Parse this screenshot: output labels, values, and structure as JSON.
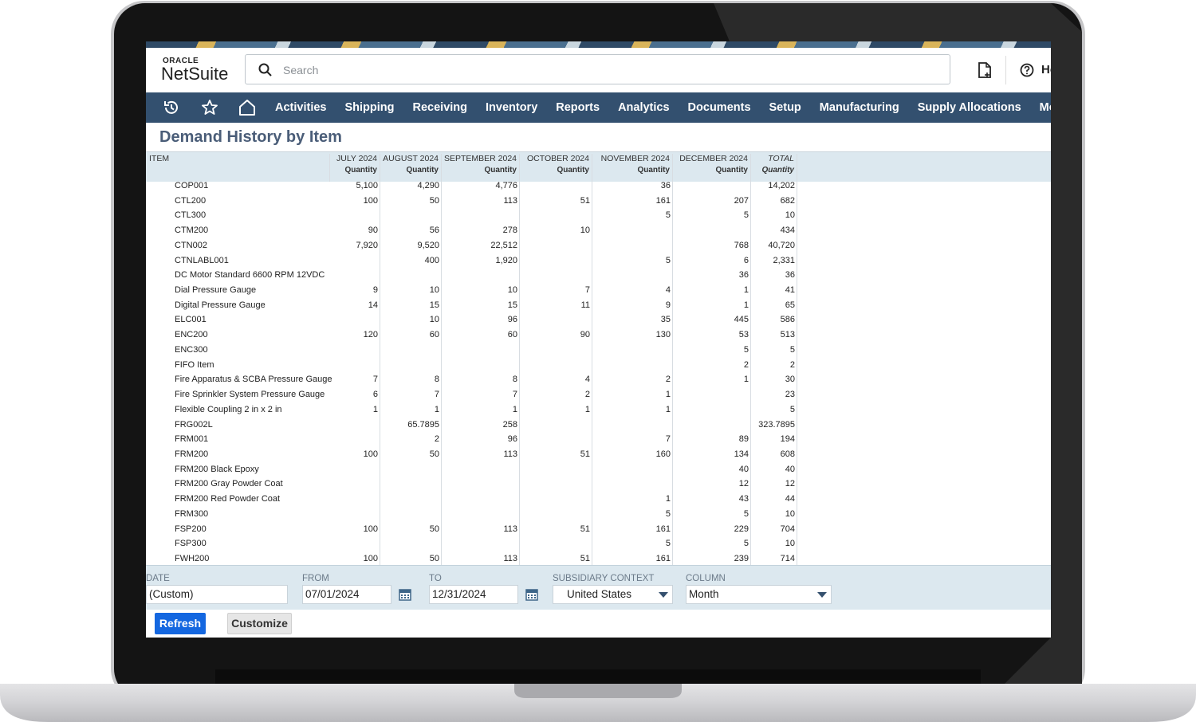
{
  "header": {
    "logo_oracle": "ORACLE",
    "logo_name": "NetSuite",
    "search_placeholder": "Search",
    "help": "He"
  },
  "nav": [
    "Activities",
    "Shipping",
    "Receiving",
    "Inventory",
    "Reports",
    "Analytics",
    "Documents",
    "Setup",
    "Manufacturing",
    "Supply Allocations",
    "Mobile"
  ],
  "page_title": "Demand History by Item",
  "table": {
    "item_header": "ITEM",
    "columns": [
      {
        "period": "JULY 2024",
        "measure": "Quantity"
      },
      {
        "period": "AUGUST 2024",
        "measure": "Quantity"
      },
      {
        "period": "SEPTEMBER 2024",
        "measure": "Quantity"
      },
      {
        "period": "OCTOBER 2024",
        "measure": "Quantity"
      },
      {
        "period": "NOVEMBER 2024",
        "measure": "Quantity"
      },
      {
        "period": "DECEMBER 2024",
        "measure": "Quantity"
      },
      {
        "period": "TOTAL",
        "measure": "Quantity"
      }
    ],
    "rows": [
      {
        "item": "COP001",
        "cells": [
          "5,100",
          "4,290",
          "4,776",
          null,
          "36",
          null,
          "14,202"
        ]
      },
      {
        "item": "CTL200",
        "cells": [
          "100",
          "50",
          "113",
          "51",
          "161",
          "207",
          "682"
        ]
      },
      {
        "item": "CTL300",
        "cells": [
          null,
          null,
          null,
          null,
          "5",
          "5",
          "10"
        ]
      },
      {
        "item": "CTM200",
        "cells": [
          "90",
          "56",
          "278",
          "10",
          null,
          null,
          "434"
        ]
      },
      {
        "item": "CTN002",
        "cells": [
          "7,920",
          "9,520",
          "22,512",
          null,
          null,
          "768",
          "40,720"
        ]
      },
      {
        "item": "CTNLABL001",
        "cells": [
          null,
          "400",
          "1,920",
          null,
          "5",
          "6",
          "2,331"
        ]
      },
      {
        "item": "DC Motor Standard 6600 RPM 12VDC",
        "cells": [
          null,
          null,
          null,
          null,
          null,
          "36",
          "36"
        ]
      },
      {
        "item": "Dial Pressure Gauge",
        "cells": [
          "9",
          "10",
          "10",
          "7",
          "4",
          "1",
          "41"
        ]
      },
      {
        "item": "Digital Pressure Gauge",
        "cells": [
          "14",
          "15",
          "15",
          "11",
          "9",
          "1",
          "65"
        ]
      },
      {
        "item": "ELC001",
        "cells": [
          null,
          "10",
          "96",
          null,
          "35",
          "445",
          "586"
        ]
      },
      {
        "item": "ENC200",
        "cells": [
          "120",
          "60",
          "60",
          "90",
          "130",
          "53",
          "513"
        ]
      },
      {
        "item": "ENC300",
        "cells": [
          null,
          null,
          null,
          null,
          null,
          "5",
          "5"
        ]
      },
      {
        "item": "FIFO Item",
        "cells": [
          null,
          null,
          null,
          null,
          null,
          "2",
          "2"
        ]
      },
      {
        "item": "Fire Apparatus & SCBA Pressure Gauge",
        "cells": [
          "7",
          "8",
          "8",
          "4",
          "2",
          "1",
          "30"
        ]
      },
      {
        "item": "Fire Sprinkler System Pressure Gauge",
        "cells": [
          "6",
          "7",
          "7",
          "2",
          "1",
          null,
          "23"
        ]
      },
      {
        "item": "Flexible Coupling 2 in x 2 in",
        "cells": [
          "1",
          "1",
          "1",
          "1",
          "1",
          null,
          "5"
        ]
      },
      {
        "item": "FRG002L",
        "cells": [
          null,
          "65.7895",
          "258",
          null,
          null,
          null,
          "323.7895"
        ]
      },
      {
        "item": "FRM001",
        "cells": [
          null,
          "2",
          "96",
          null,
          "7",
          "89",
          "194"
        ]
      },
      {
        "item": "FRM200",
        "cells": [
          "100",
          "50",
          "113",
          "51",
          "160",
          "134",
          "608"
        ]
      },
      {
        "item": "FRM200 Black Epoxy",
        "cells": [
          null,
          null,
          null,
          null,
          null,
          "40",
          "40"
        ]
      },
      {
        "item": "FRM200 Gray Powder Coat",
        "cells": [
          null,
          null,
          null,
          null,
          null,
          "12",
          "12"
        ]
      },
      {
        "item": "FRM200 Red Powder Coat",
        "cells": [
          null,
          null,
          null,
          null,
          "1",
          "43",
          "44"
        ]
      },
      {
        "item": "FRM300",
        "cells": [
          null,
          null,
          null,
          null,
          "5",
          "5",
          "10"
        ]
      },
      {
        "item": "FSP200",
        "cells": [
          "100",
          "50",
          "113",
          "51",
          "161",
          "229",
          "704"
        ]
      },
      {
        "item": "FSP300",
        "cells": [
          null,
          null,
          null,
          null,
          "5",
          "5",
          "10"
        ]
      },
      {
        "item": "FWH200",
        "cells": [
          "100",
          "50",
          "113",
          "51",
          "161",
          "239",
          "714"
        ]
      }
    ]
  },
  "filters": [
    {
      "label": "DATE",
      "value": "(Custom)"
    },
    {
      "label": "FROM",
      "value": "07/01/2024"
    },
    {
      "label": "TO",
      "value": "12/31/2024"
    },
    {
      "label": "SUBSIDIARY CONTEXT",
      "value": "United States"
    },
    {
      "label": "COLUMN",
      "value": "Month"
    }
  ],
  "buttons": [
    "Refresh",
    "Customize"
  ]
}
